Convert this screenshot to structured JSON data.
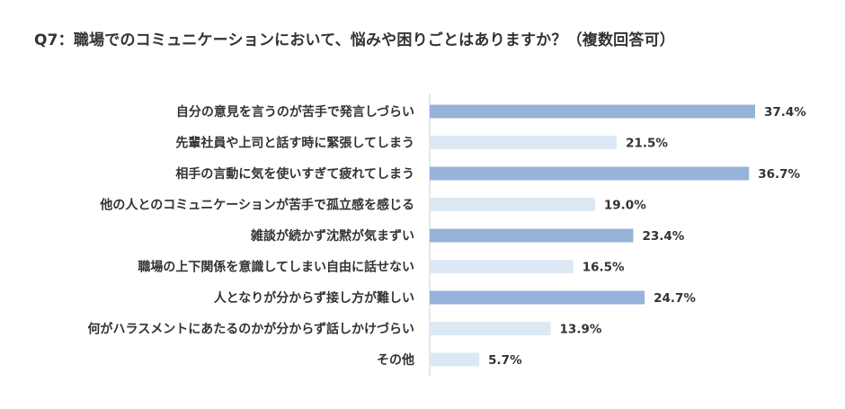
{
  "title": "Q7：職場でのコミュニケーションにおいて、悩みや困りごとはありますか？（複数回答可）",
  "colors": {
    "bar_dark": "#97b3da",
    "bar_light": "#dde8f5",
    "axis": "#cfcfcf",
    "text": "#333333"
  },
  "chart_data": {
    "type": "bar",
    "orientation": "horizontal",
    "title": "Q7：職場でのコミュニケーションにおいて、悩みや困りごとはありますか？（複数回答可）",
    "value_suffix": "%",
    "xlim": [
      0,
      40
    ],
    "categories": [
      "自分の意見を言うのが苦手で発言しづらい",
      "先輩社員や上司と話す時に緊張してしまう",
      "相手の言動に気を使いすぎて疲れてしまう",
      "他の人とのコミュニケーションが苦手で孤立感を感じる",
      "雑談が続かず沈黙が気まずい",
      "職場の上下関係を意識してしまい自由に話せない",
      "人となりが分からず接し方が難しい",
      "何がハラスメントにあたるのかが分からず話しかけづらい",
      "その他"
    ],
    "values": [
      37.4,
      21.5,
      36.7,
      19.0,
      23.4,
      16.5,
      24.7,
      13.9,
      5.7
    ],
    "value_labels": [
      "37.4%",
      "21.5%",
      "36.7%",
      "19.0%",
      "23.4%",
      "16.5%",
      "24.7%",
      "13.9%",
      "5.7%"
    ],
    "bar_shades": [
      "dark",
      "light",
      "dark",
      "light",
      "dark",
      "light",
      "dark",
      "light",
      "light"
    ],
    "grid": false,
    "legend": "none"
  }
}
